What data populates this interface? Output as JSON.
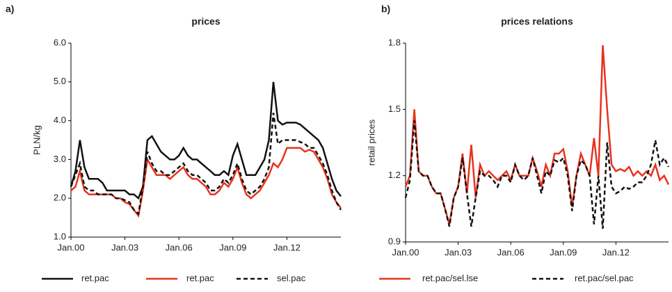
{
  "chart_data": [
    {
      "type": "line",
      "panel_label": "a)",
      "title": "prices",
      "ylabel": "PLN/kg",
      "categories": [
        "Jan.00",
        null,
        null,
        null,
        null,
        null,
        null,
        null,
        null,
        null,
        null,
        null,
        "Jan.03",
        null,
        null,
        null,
        null,
        null,
        null,
        null,
        null,
        null,
        null,
        null,
        "Jan.06",
        null,
        null,
        null,
        null,
        null,
        null,
        null,
        null,
        null,
        null,
        null,
        "Jan.09",
        null,
        null,
        null,
        null,
        null,
        null,
        null,
        null,
        null,
        null,
        null,
        "Jan.12",
        null,
        null,
        null,
        null,
        null,
        null,
        null,
        null,
        null,
        null,
        null,
        null
      ],
      "ylim": [
        1.0,
        6.0
      ],
      "yticks": [
        {
          "value": 1.0,
          "label": "1.0"
        },
        {
          "value": 2.0,
          "label": "2.0"
        },
        {
          "value": 3.0,
          "label": "3.0"
        },
        {
          "value": 4.0,
          "label": "4.0"
        },
        {
          "value": 5.0,
          "label": "5.0"
        },
        {
          "value": 6.0,
          "label": "6.0"
        }
      ],
      "series": [
        {
          "name": "ret.pac",
          "color": "#111111",
          "dash": false,
          "values": [
            2.3,
            2.7,
            3.5,
            2.8,
            2.5,
            2.5,
            2.5,
            2.4,
            2.2,
            2.2,
            2.2,
            2.2,
            2.2,
            2.1,
            2.1,
            2.0,
            2.3,
            3.5,
            3.6,
            3.4,
            3.2,
            3.1,
            3.0,
            3.0,
            3.1,
            3.3,
            3.1,
            3.0,
            3.0,
            2.9,
            2.8,
            2.7,
            2.6,
            2.6,
            2.7,
            2.6,
            3.1,
            3.4,
            3.0,
            2.6,
            2.6,
            2.6,
            2.8,
            3.0,
            3.5,
            5.0,
            4.0,
            3.9,
            3.95,
            3.95,
            3.95,
            3.9,
            3.8,
            3.7,
            3.6,
            3.5,
            3.3,
            2.9,
            2.5,
            2.2,
            2.05
          ]
        },
        {
          "name": "ret.pac",
          "color": "#e8321e",
          "dash": false,
          "values": [
            2.2,
            2.3,
            2.7,
            2.2,
            2.1,
            2.1,
            2.1,
            2.1,
            2.1,
            2.1,
            2.0,
            2.0,
            1.9,
            1.85,
            1.7,
            1.55,
            2.2,
            3.0,
            2.8,
            2.6,
            2.6,
            2.6,
            2.5,
            2.6,
            2.7,
            2.8,
            2.6,
            2.5,
            2.5,
            2.4,
            2.3,
            2.1,
            2.1,
            2.2,
            2.4,
            2.3,
            2.5,
            2.8,
            2.4,
            2.1,
            2.0,
            2.1,
            2.2,
            2.4,
            2.6,
            2.9,
            2.8,
            3.0,
            3.3,
            3.3,
            3.3,
            3.3,
            3.2,
            3.25,
            3.2,
            3.0,
            2.8,
            2.5,
            2.1,
            1.9,
            1.75
          ]
        },
        {
          "name": "sel.pac",
          "color": "#111111",
          "dash": true,
          "values": [
            2.3,
            2.6,
            2.9,
            2.3,
            2.2,
            2.2,
            2.1,
            2.1,
            2.1,
            2.1,
            2.0,
            2.0,
            1.95,
            1.9,
            1.7,
            1.6,
            2.3,
            3.2,
            2.9,
            2.7,
            2.7,
            2.6,
            2.6,
            2.7,
            2.8,
            2.9,
            2.7,
            2.6,
            2.6,
            2.5,
            2.4,
            2.2,
            2.2,
            2.3,
            2.5,
            2.4,
            2.6,
            2.9,
            2.5,
            2.2,
            2.1,
            2.2,
            2.3,
            2.5,
            2.8,
            4.2,
            3.4,
            3.5,
            3.5,
            3.5,
            3.5,
            3.45,
            3.4,
            3.3,
            3.3,
            3.1,
            2.9,
            2.6,
            2.2,
            1.9,
            1.7
          ]
        }
      ]
    },
    {
      "type": "line",
      "panel_label": "b)",
      "title": "prices relations",
      "ylabel": "retail prices",
      "categories": [
        "Jan.00",
        null,
        null,
        null,
        null,
        null,
        null,
        null,
        null,
        null,
        null,
        null,
        "Jan.03",
        null,
        null,
        null,
        null,
        null,
        null,
        null,
        null,
        null,
        null,
        null,
        "Jan.06",
        null,
        null,
        null,
        null,
        null,
        null,
        null,
        null,
        null,
        null,
        null,
        "Jan.09",
        null,
        null,
        null,
        null,
        null,
        null,
        null,
        null,
        null,
        null,
        null,
        "Jan.12",
        null,
        null,
        null,
        null,
        null,
        null,
        null,
        null,
        null,
        null,
        null,
        null
      ],
      "ylim": [
        0.9,
        1.8
      ],
      "yticks": [
        {
          "value": 0.9,
          "label": "0.9"
        },
        {
          "value": 1.2,
          "label": "1.2"
        },
        {
          "value": 1.5,
          "label": "1.5"
        },
        {
          "value": 1.8,
          "label": "1.8"
        }
      ],
      "series": [
        {
          "name": "ret.pac/sel.lse",
          "color": "#e8321e",
          "dash": false,
          "values": [
            1.15,
            1.2,
            1.5,
            1.22,
            1.2,
            1.2,
            1.15,
            1.12,
            1.12,
            1.05,
            0.98,
            1.1,
            1.15,
            1.3,
            1.12,
            1.34,
            1.1,
            1.25,
            1.2,
            1.22,
            1.2,
            1.18,
            1.2,
            1.22,
            1.18,
            1.25,
            1.2,
            1.2,
            1.2,
            1.28,
            1.22,
            1.15,
            1.25,
            1.2,
            1.3,
            1.3,
            1.32,
            1.22,
            1.06,
            1.2,
            1.3,
            1.25,
            1.2,
            1.37,
            1.2,
            1.79,
            1.5,
            1.25,
            1.22,
            1.23,
            1.22,
            1.24,
            1.2,
            1.22,
            1.2,
            1.22,
            1.2,
            1.25,
            1.18,
            1.2,
            1.16
          ]
        },
        {
          "name": "ret.pac/sel.pac",
          "color": "#111111",
          "dash": true,
          "values": [
            1.1,
            1.18,
            1.45,
            1.22,
            1.2,
            1.2,
            1.15,
            1.12,
            1.12,
            1.05,
            0.97,
            1.1,
            1.15,
            1.28,
            1.12,
            0.97,
            1.1,
            1.22,
            1.2,
            1.2,
            1.18,
            1.15,
            1.2,
            1.2,
            1.17,
            1.25,
            1.2,
            1.18,
            1.2,
            1.28,
            1.2,
            1.12,
            1.22,
            1.2,
            1.27,
            1.26,
            1.28,
            1.2,
            1.04,
            1.2,
            1.27,
            1.25,
            1.2,
            0.98,
            1.2,
            0.96,
            1.35,
            1.15,
            1.12,
            1.13,
            1.15,
            1.14,
            1.15,
            1.17,
            1.17,
            1.2,
            1.25,
            1.36,
            1.25,
            1.28,
            1.24
          ]
        }
      ]
    }
  ]
}
